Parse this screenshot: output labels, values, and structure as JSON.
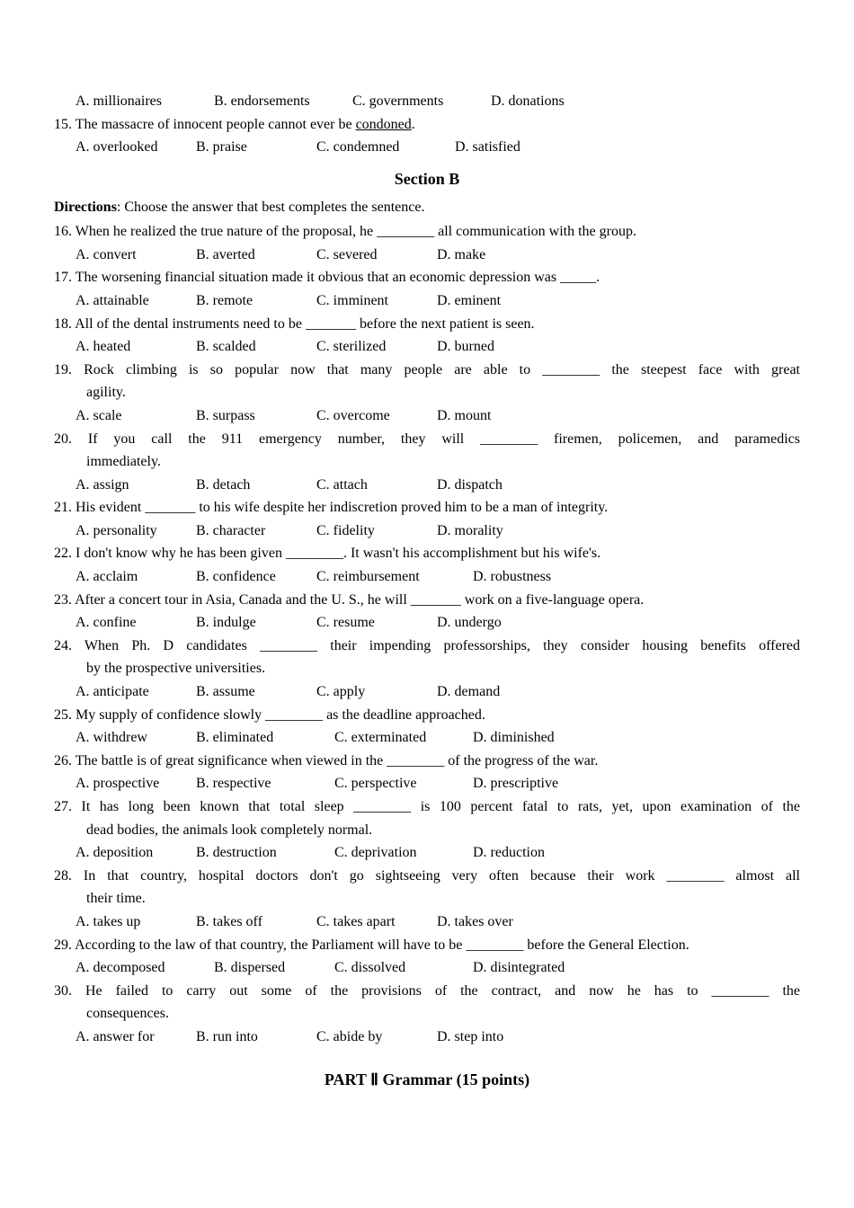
{
  "top_options": {
    "a": "A. millionaires",
    "b": "B. endorsements",
    "c": "C. governments",
    "d": "D. donations"
  },
  "q15": {
    "text_pre": "15. The massacre of innocent people cannot ever be ",
    "underlined": "condoned",
    "text_post": ".",
    "a": "A. overlooked",
    "b": "B. praise",
    "c": "C. condemned",
    "d": "D. satisfied"
  },
  "sectionB": "Section B",
  "directionsB": {
    "label": "Directions",
    "text": ": Choose the answer that best completes the sentence."
  },
  "q16": {
    "text": "16. When he realized the true nature of the proposal, he ________ all communication with the group.",
    "a": "A. convert",
    "b": "B. averted",
    "c": "C. severed",
    "d": "D. make"
  },
  "q17": {
    "text": "17. The worsening financial situation made it obvious that an economic depression was _____.",
    "a": "A. attainable",
    "b": "B. remote",
    "c": "C. imminent",
    "d": "D. eminent"
  },
  "q18": {
    "text": "18. All of the dental instruments need to be _______ before the next patient is seen.",
    "a": "A. heated",
    "b": "B. scalded",
    "c": "C. sterilized",
    "d": "D. burned"
  },
  "q19": {
    "line1": "19. Rock climbing is so popular now that many people are able to ________ the steepest face with great",
    "line2": "agility.",
    "a": "A. scale",
    "b": "B. surpass",
    "c": "C. overcome",
    "d": "D. mount"
  },
  "q20": {
    "line1": "20. If you call the 911 emergency number, they will ________ firemen, policemen, and paramedics",
    "line2": "immediately.",
    "a": "A. assign",
    "b": "B. detach",
    "c": "C. attach",
    "d": "D. dispatch"
  },
  "q21": {
    "text": "21. His evident _______ to his wife despite her indiscretion proved him to be a man of integrity.",
    "a": "A. personality",
    "b": "B. character",
    "c": "C. fidelity",
    "d": "D. morality"
  },
  "q22": {
    "text": "22. I don't know why he has been given ________. It wasn't his accomplishment but his wife's.",
    "a": "A. acclaim",
    "b": "B. confidence",
    "c": "C. reimbursement",
    "d": "D. robustness"
  },
  "q23": {
    "text": "23. After a concert tour in Asia, Canada and the U. S., he will _______ work on a five-language opera.",
    "a": "A. confine",
    "b": "B. indulge",
    "c": "C. resume",
    "d": "D. undergo"
  },
  "q24": {
    "line1": "24. When Ph. D candidates ________ their impending professorships, they consider housing benefits offered",
    "line2": "by the prospective universities.",
    "a": "A. anticipate",
    "b": "B. assume",
    "c": "C. apply",
    "d": "D. demand"
  },
  "q25": {
    "text": "25. My supply of confidence slowly ________ as the deadline approached.",
    "a": "A. withdrew",
    "b": "B. eliminated",
    "c": "C. exterminated",
    "d": "D. diminished"
  },
  "q26": {
    "text": "26. The battle is of great significance when viewed in the ________ of the progress of    the war.",
    "a": "A. prospective",
    "b": "B. respective",
    "c": "C. perspective",
    "d": "D. prescriptive"
  },
  "q27": {
    "line1": "27. It has long been known that total sleep ________ is 100 percent fatal to rats, yet, upon examination of the",
    "line2": "dead bodies, the animals look completely normal.",
    "a": "A. deposition",
    "b": "B. destruction",
    "c": "C. deprivation",
    "d": "D. reduction"
  },
  "q28": {
    "line1": "28. In that country, hospital doctors don't go sightseeing very often because their work ________ almost all",
    "line2": "their time.",
    "a": "A. takes up",
    "b": "B. takes off",
    "c": "C. takes apart",
    "d": "D. takes over"
  },
  "q29": {
    "text": "29. According to the law of that country, the Parliament will have to be ________ before the General Election.",
    "a": "A. decomposed",
    "b": "B. dispersed",
    "c": "C. dissolved",
    "d": "D. disintegrated"
  },
  "q30": {
    "line1": "30. He failed to carry out some of the provisions of the contract, and now he has to ________ the",
    "line2": "consequences.",
    "a": "A. answer for",
    "b": "B. run into",
    "c": "C. abide by",
    "d": "D. step into"
  },
  "part2": {
    "pre": "PART ",
    "num": "Ⅱ",
    "post": " Grammar (15 points)"
  }
}
